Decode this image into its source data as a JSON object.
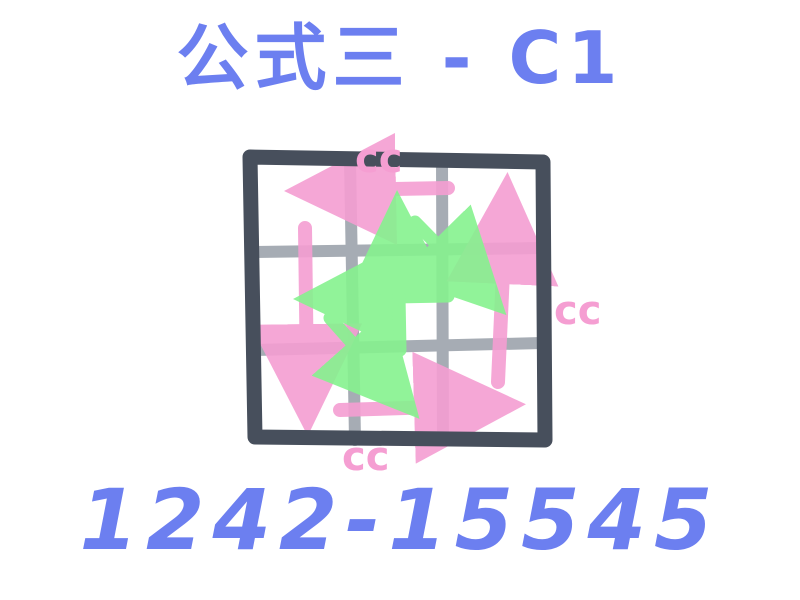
{
  "title": "公式三 - C1",
  "algorithm_code": "1242-15545",
  "labels": {
    "top": "cc",
    "right": "cc",
    "bottom": "cc"
  },
  "colors": {
    "text": "#6c7ff0",
    "grid_outer": "#474f5c",
    "grid_inner": "#a2a8b0",
    "arrow_pink": "#f59ed2",
    "arrow_green": "#86f28f"
  }
}
